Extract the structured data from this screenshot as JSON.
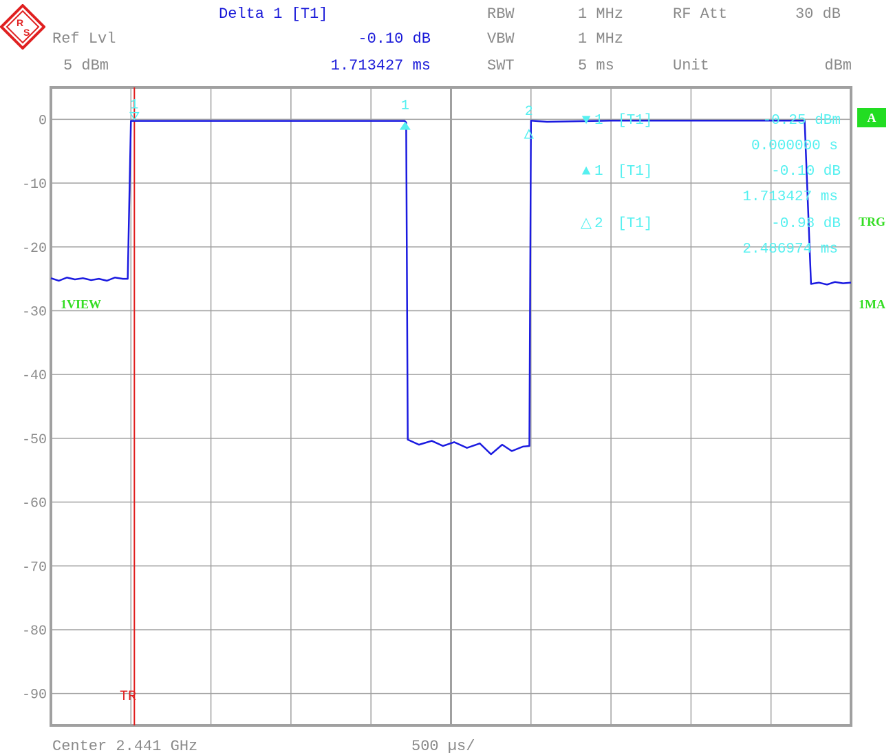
{
  "header": {
    "marker_title": "Delta 1 [T1]",
    "ref_lvl_label": "Ref Lvl",
    "ref_lvl_value": "5 dBm",
    "delta_level": "-0.10 dB",
    "delta_time": "1.713427 ms",
    "rbw_label": "RBW",
    "rbw_value": "1 MHz",
    "vbw_label": "VBW",
    "vbw_value": "1 MHz",
    "swt_label": "SWT",
    "swt_value": "5 ms",
    "rf_att_label": "RF Att",
    "rf_att_value": "30 dB",
    "unit_label": "Unit",
    "unit_value": "dBm"
  },
  "footer": {
    "center": "Center 2.441 GHz",
    "span_per_div": "500 µs/"
  },
  "side_labels": {
    "view": "1VIEW",
    "badge": "A",
    "trg": "TRG",
    "ma": "1MA",
    "trigger": "TR"
  },
  "marker_table": [
    {
      "symbol": "▼",
      "id": "1",
      "trace": "[T1]",
      "value": "-0.25 dBm",
      "time": "0.000000 s"
    },
    {
      "symbol": "▲",
      "id": "1",
      "trace": "[T1]",
      "value": "-0.10 dB",
      "time": "1.713427 ms"
    },
    {
      "symbol": "△",
      "id": "2",
      "trace": "[T1]",
      "value": "-0.98 dB",
      "time": "2.486974 ms"
    }
  ],
  "colors": {
    "trace": "#1a1ae0",
    "trigger": "#e02020",
    "marker": "#55f0f0",
    "grid": "#a0a0a0",
    "text": "#8a8a8a",
    "header_blue": "#1818d8",
    "status_green": "#33dd22"
  },
  "icons": {
    "logo": "rohde-schwarz-logo"
  },
  "chart_data": {
    "type": "line",
    "title": "",
    "xlabel": "",
    "ylabel": "",
    "x_unit": "ms",
    "ylim": [
      -95,
      5
    ],
    "xlim": [
      -0.5,
      4.5
    ],
    "yticks": [
      0,
      -10,
      -20,
      -30,
      -40,
      -50,
      -60,
      -70,
      -80,
      -90
    ],
    "ytick_labels": [
      "0",
      "-10",
      "-20",
      "-30",
      "-40",
      "-50",
      "-60",
      "-70",
      "-80",
      "-90"
    ],
    "grid": true,
    "trigger_time": 0.0,
    "series": [
      {
        "x": [
          -0.5,
          -0.45,
          -0.4,
          -0.35,
          -0.3,
          -0.25,
          -0.2,
          -0.15,
          -0.1,
          -0.05,
          -0.02,
          0.0,
          0.5,
          1.0,
          1.5,
          1.71,
          1.72,
          1.73,
          1.8,
          1.88,
          1.95,
          2.02,
          2.1,
          2.18,
          2.25,
          2.32,
          2.38,
          2.45,
          2.49,
          2.5,
          2.6,
          3.0,
          3.5,
          3.8,
          4.21,
          4.25,
          4.3,
          4.35,
          4.4,
          4.45,
          4.5
        ],
        "y": [
          -24.9,
          -25.3,
          -24.8,
          -25.1,
          -24.9,
          -25.2,
          -25.0,
          -25.3,
          -24.8,
          -25.0,
          -25.0,
          -0.25,
          -0.25,
          -0.25,
          -0.25,
          -0.25,
          -0.5,
          -50.2,
          -51.0,
          -50.4,
          -51.2,
          -50.6,
          -51.5,
          -50.8,
          -52.5,
          -51.0,
          -52.0,
          -51.3,
          -51.2,
          -0.2,
          -0.4,
          -0.2,
          -0.2,
          -0.2,
          -0.2,
          -25.8,
          -25.6,
          -25.9,
          -25.5,
          -25.7,
          -25.6
        ]
      }
    ],
    "markers": [
      {
        "label": "1",
        "kind": "reference",
        "x": 0.0,
        "y": -0.25
      },
      {
        "label": "1",
        "kind": "delta",
        "x": 1.713427,
        "y": -0.35
      },
      {
        "label": "2",
        "kind": "delta",
        "x": 2.486974,
        "y": -1.23
      }
    ]
  }
}
